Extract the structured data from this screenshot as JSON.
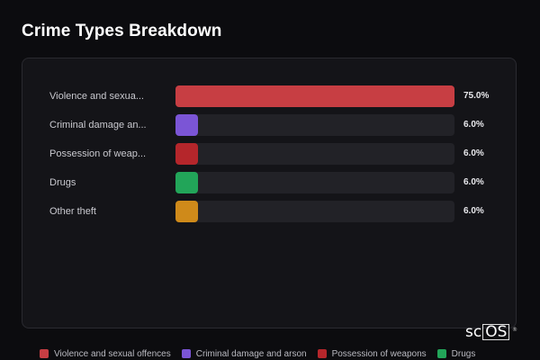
{
  "title": "Crime Types Breakdown",
  "chart_data": {
    "type": "bar",
    "orientation": "horizontal",
    "categories": [
      "Violence and sexual offences",
      "Criminal damage and arson",
      "Possession of weapons",
      "Drugs",
      "Other theft"
    ],
    "category_labels_shown": [
      "Violence and sexua...",
      "Criminal damage an...",
      "Possession of weap...",
      "Drugs",
      "Other theft"
    ],
    "values": [
      75.0,
      6.0,
      6.0,
      6.0,
      6.0
    ],
    "value_labels": [
      "75.0%",
      "6.0%",
      "6.0%",
      "6.0%",
      "6.0%"
    ],
    "unit": "%",
    "xlim": [
      0,
      75
    ],
    "colors": [
      "#c73e43",
      "#7b55d6",
      "#b5262b",
      "#22a559",
      "#cf8a1a"
    ],
    "legend": {
      "position": "bottom",
      "entries": [
        "Violence and sexual offences",
        "Criminal damage and arson",
        "Possession of weapons",
        "Drugs"
      ]
    }
  },
  "logo": {
    "text_sc": "sc",
    "text_os": "OS",
    "reg": "®"
  }
}
